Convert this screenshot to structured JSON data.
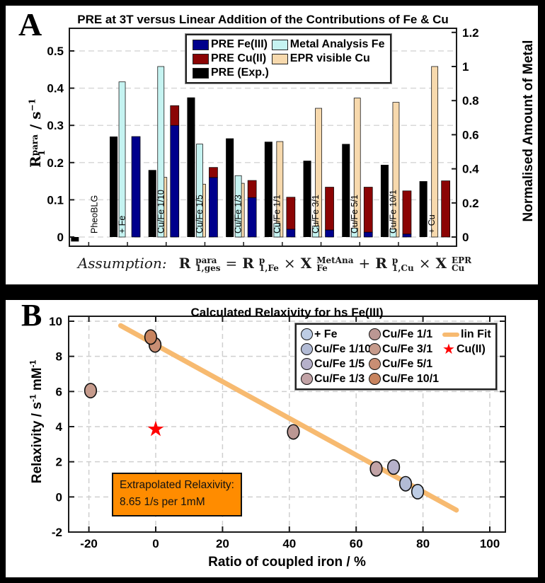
{
  "figure": {
    "background": "#000000"
  },
  "panel_a": {
    "panel_label": "A"
  },
  "panel_b": {
    "panel_label": "B"
  },
  "chart_data": [
    {
      "id": "pre-bar-chart",
      "type": "bar",
      "title": "PRE at 3T versus Linear Addition of the Contributions of Fe & Cu",
      "ylabel_left_tokens": [
        {
          "base": "R",
          "sup": "para",
          "sub": "1"
        },
        {
          "text": " /  s"
        },
        {
          "sup": "−1"
        }
      ],
      "ylabel_right": "Normalised Amount of Metal",
      "y_left_ticks": [
        "0",
        "0.1",
        "0.2",
        "0.3",
        "0.4",
        "0.5"
      ],
      "y_right_ticks": [
        "0",
        "0.2",
        "0.4",
        "0.6",
        "0.8",
        "1",
        "1.2"
      ],
      "ylim_left": [
        -0.025,
        0.561
      ],
      "right_axis_per_left_unit": 2.182,
      "grid": true,
      "legend_position": "top-center",
      "categories": [
        "PheoBLG",
        "+ Fe",
        "Cu/Fe 1/10",
        "Cu/Fe 1/5",
        "Cu/Fe 1/3",
        "Cu/Fe 1/1",
        "Cu/Fe 3/1",
        "Cu/Fe 5/1",
        "Cu/Fe 10/1",
        "+ Cu"
      ],
      "series": [
        {
          "key": "pre_exp",
          "name": "PRE (Exp.)",
          "axis": "left",
          "color": "#000000",
          "values": [
            -0.012,
            0.27,
            0.18,
            0.375,
            0.265,
            0.256,
            0.205,
            0.25,
            0.194,
            0.15
          ]
        },
        {
          "key": "metal_fe",
          "name": "Metal Analysis Fe",
          "axis": "right",
          "color": "#C5F3F1",
          "values": [
            null,
            0.91,
            1,
            0.545,
            0.36,
            0.08,
            0.065,
            0.052,
            0.046,
            null
          ]
        },
        {
          "key": "epr_cu",
          "name": "EPR visible Cu",
          "axis": "right",
          "color": "#F7D9AD",
          "values": [
            null,
            null,
            0.35,
            0.31,
            0.315,
            0.56,
            0.755,
            0.815,
            0.79,
            1
          ]
        },
        {
          "key": "pre_fe",
          "name": "PRE Fe(III)",
          "axis": "left",
          "color": "#00008C",
          "stack": "pre",
          "values": [
            null,
            0.27,
            0.3,
            0.16,
            0.106,
            0.021,
            0.019,
            0.013,
            0.008,
            null
          ]
        },
        {
          "key": "pre_cu",
          "name": "PRE Cu(II)",
          "axis": "left",
          "color": "#8B0404",
          "stack": "pre",
          "values": [
            null,
            null,
            0.053,
            0.027,
            0.046,
            0.086,
            0.115,
            0.121,
            0.116,
            0.151
          ]
        }
      ],
      "legend_order": [
        "pre_fe",
        "metal_fe",
        "pre_cu",
        "epr_cu",
        "pre_exp"
      ],
      "formula": {
        "prefix": "Assumption:",
        "tokens": [
          {
            "base": "R",
            "sup": "para",
            "sub": "1,ges"
          },
          {
            "text": "="
          },
          {
            "base": "R",
            "sup": "p",
            "sub": "1,Fe"
          },
          {
            "text": "×"
          },
          {
            "base": "X",
            "sup": "MetAna",
            "sub": "Fe"
          },
          {
            "text": "+"
          },
          {
            "base": "R",
            "sup": "p",
            "sub": "1,Cu"
          },
          {
            "text": "×"
          },
          {
            "base": "X",
            "sup": "EPR",
            "sub": "Cu"
          }
        ]
      }
    },
    {
      "id": "relaxivity-scatter",
      "type": "scatter",
      "title": "Calculated Relaxivity for hs Fe(III)",
      "xlabel": "Ratio of coupled iron /  %",
      "ylabel_tokens": [
        {
          "text": "Relaxivity /  s"
        },
        {
          "sup": "-1"
        },
        {
          "text": " mM"
        },
        {
          "sup": "-1"
        }
      ],
      "x_ticks": [
        -20,
        0,
        20,
        40,
        60,
        80,
        100
      ],
      "y_ticks": [
        -2,
        0,
        2,
        4,
        6,
        8,
        10
      ],
      "xlim": [
        -26,
        104.7
      ],
      "ylim": [
        -2,
        10.3
      ],
      "grid": true,
      "points": [
        {
          "label": "+ Fe",
          "x": 78.4,
          "y": 0.3,
          "color": "#BDCCE4"
        },
        {
          "label": "Cu/Fe 1/10",
          "x": 74.8,
          "y": 0.75,
          "color": "#B2BBD5"
        },
        {
          "label": "Cu/Fe 1/5",
          "x": 71.2,
          "y": 1.7,
          "color": "#B6B1CA"
        },
        {
          "label": "Cu/Fe 1/3",
          "x": 66,
          "y": 1.6,
          "color": "#C2A3A6"
        },
        {
          "label": "Cu/Fe 1/1",
          "x": 41.2,
          "y": 3.7,
          "color": "#BB9793"
        },
        {
          "label": "Cu/Fe 3/1",
          "x": -19.5,
          "y": 6.05,
          "color": "#C69B8C"
        },
        {
          "label": "Cu/Fe 5/1",
          "x": -0.2,
          "y": 8.65,
          "color": "#C98E74"
        },
        {
          "label": "Cu/Fe 10/1",
          "x": -1.5,
          "y": 9.1,
          "color": "#C8845F"
        }
      ],
      "star": {
        "label": "Cu(II)",
        "x": 0,
        "y": 3.85,
        "color": "#FF0000"
      },
      "fit": {
        "label": "lin Fit",
        "color": "#F7BA70",
        "x1": -10.5,
        "y1": 9.75,
        "x2": 90,
        "y2": -0.75,
        "intercept": 8.65,
        "slope": -0.1045
      },
      "legend_columns": [
        [
          "+ Fe",
          "Cu/Fe 1/10",
          "Cu/Fe 1/5",
          "Cu/Fe 1/3"
        ],
        [
          "Cu/Fe 1/1",
          "Cu/Fe 3/1",
          "Cu/Fe 5/1",
          "Cu/Fe 10/1"
        ],
        [
          "lin Fit",
          "Cu(II)"
        ]
      ],
      "annotation": {
        "line1": "Extrapolated Relaxivity:",
        "line2": "8.65 1/s per 1mM",
        "bg_color": "#FF8C00"
      }
    }
  ]
}
